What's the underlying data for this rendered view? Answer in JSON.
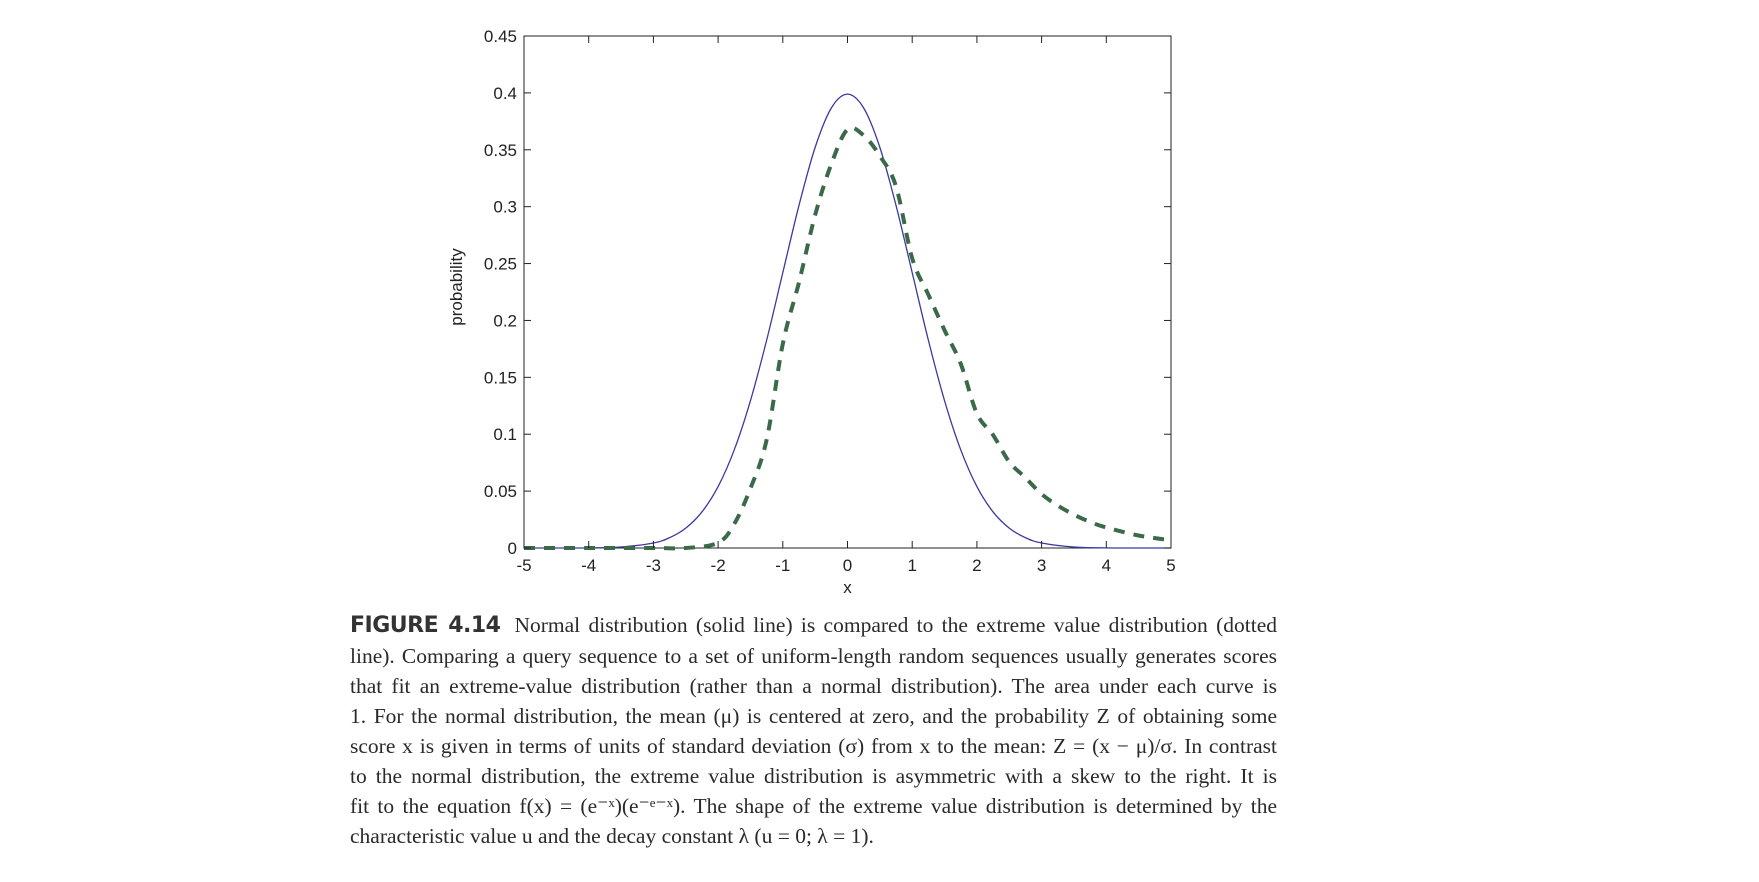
{
  "colors": {
    "normal_line": "#3a3aa0",
    "extreme_line": "#3a6a4a",
    "axis": "#222222"
  },
  "chart_data": {
    "type": "line",
    "title": "",
    "xlabel": "x",
    "ylabel": "probability",
    "xlim": [
      -5,
      5
    ],
    "ylim": [
      0,
      0.45
    ],
    "xticks": [
      -5,
      -4,
      -3,
      -2,
      -1,
      0,
      1,
      2,
      3,
      4,
      5
    ],
    "xtick_labels": [
      "-5",
      "-4",
      "-3",
      "-2",
      "-1",
      "0",
      "1",
      "2",
      "3",
      "4",
      "5"
    ],
    "yticks": [
      0,
      0.05,
      0.1,
      0.15,
      0.2,
      0.25,
      0.3,
      0.35,
      0.4,
      0.45
    ],
    "ytick_labels": [
      "0",
      "0.05",
      "0.1",
      "0.15",
      "0.2",
      "0.25",
      "0.3",
      "0.35",
      "0.4",
      "0.45"
    ],
    "grid": false,
    "series": [
      {
        "style": "solid",
        "x": [
          -5,
          -4.5,
          -4,
          -3.5,
          -3,
          -2.75,
          -2.5,
          -2.25,
          -2,
          -1.75,
          -1.5,
          -1.25,
          -1,
          -0.75,
          -0.5,
          -0.25,
          0,
          0.25,
          0.5,
          0.75,
          1,
          1.25,
          1.5,
          1.75,
          2,
          2.25,
          2.5,
          2.75,
          3,
          3.5,
          4,
          4.5,
          5
        ],
        "y": [
          1.5e-06,
          1.6e-05,
          0.000134,
          0.000873,
          0.00443,
          0.00909,
          0.0175,
          0.0317,
          0.054,
          0.0863,
          0.1295,
          0.1826,
          0.242,
          0.3011,
          0.3521,
          0.3867,
          0.3989,
          0.3867,
          0.3521,
          0.3011,
          0.242,
          0.1826,
          0.1295,
          0.0863,
          0.054,
          0.0317,
          0.0175,
          0.00909,
          0.00443,
          0.000873,
          0.000134,
          1.6e-05,
          1.5e-06
        ]
      },
      {
        "style": "dashed",
        "x": [
          -5,
          -4,
          -3,
          -2.5,
          -2,
          -1.75,
          -1.5,
          -1.25,
          -1,
          -0.75,
          -0.5,
          -0.25,
          0,
          0.25,
          0.5,
          0.75,
          1,
          1.25,
          1.5,
          1.75,
          2,
          2.25,
          2.5,
          2.75,
          3,
          3.25,
          3.5,
          3.75,
          4,
          4.5,
          5
        ],
        "y": [
          0,
          0,
          0,
          9.5e-06,
          0.0046,
          0.0212,
          0.0524,
          0.0951,
          0.1794,
          0.2334,
          0.2927,
          0.3375,
          0.3679,
          0.3626,
          0.3446,
          0.3178,
          0.2546,
          0.2226,
          0.1914,
          0.1619,
          0.1182,
          0.0993,
          0.0757,
          0.0618,
          0.0474,
          0.0373,
          0.0293,
          0.0229,
          0.018,
          0.011,
          0.0067
        ]
      }
    ]
  },
  "caption": {
    "label": "FIGURE 4.14",
    "lines": [
      "Normal distribution (solid line) is compared to the extreme value distribution (dotted",
      "line). Comparing a query sequence to a set of uniform-length random sequences usually generates scores",
      "that fit an extreme-value distribution (rather than a normal distribution). The area under each curve is",
      "1. For the normal distribution, the mean (μ) is centered at zero, and the probability Z of obtaining some",
      "score x is given in terms of units of standard deviation (σ) from x to the mean: Z = (x − μ)/σ. In contrast",
      "to the normal distribution, the extreme value distribution is asymmetric with a skew to the right. It is",
      "fit to the equation f(x) = (e⁻ˣ)(e⁻ᵉ⁻ˣ). The shape of the extreme value distribution is determined by the",
      "characteristic value u and the decay constant λ (u = 0; λ = 1)."
    ]
  }
}
